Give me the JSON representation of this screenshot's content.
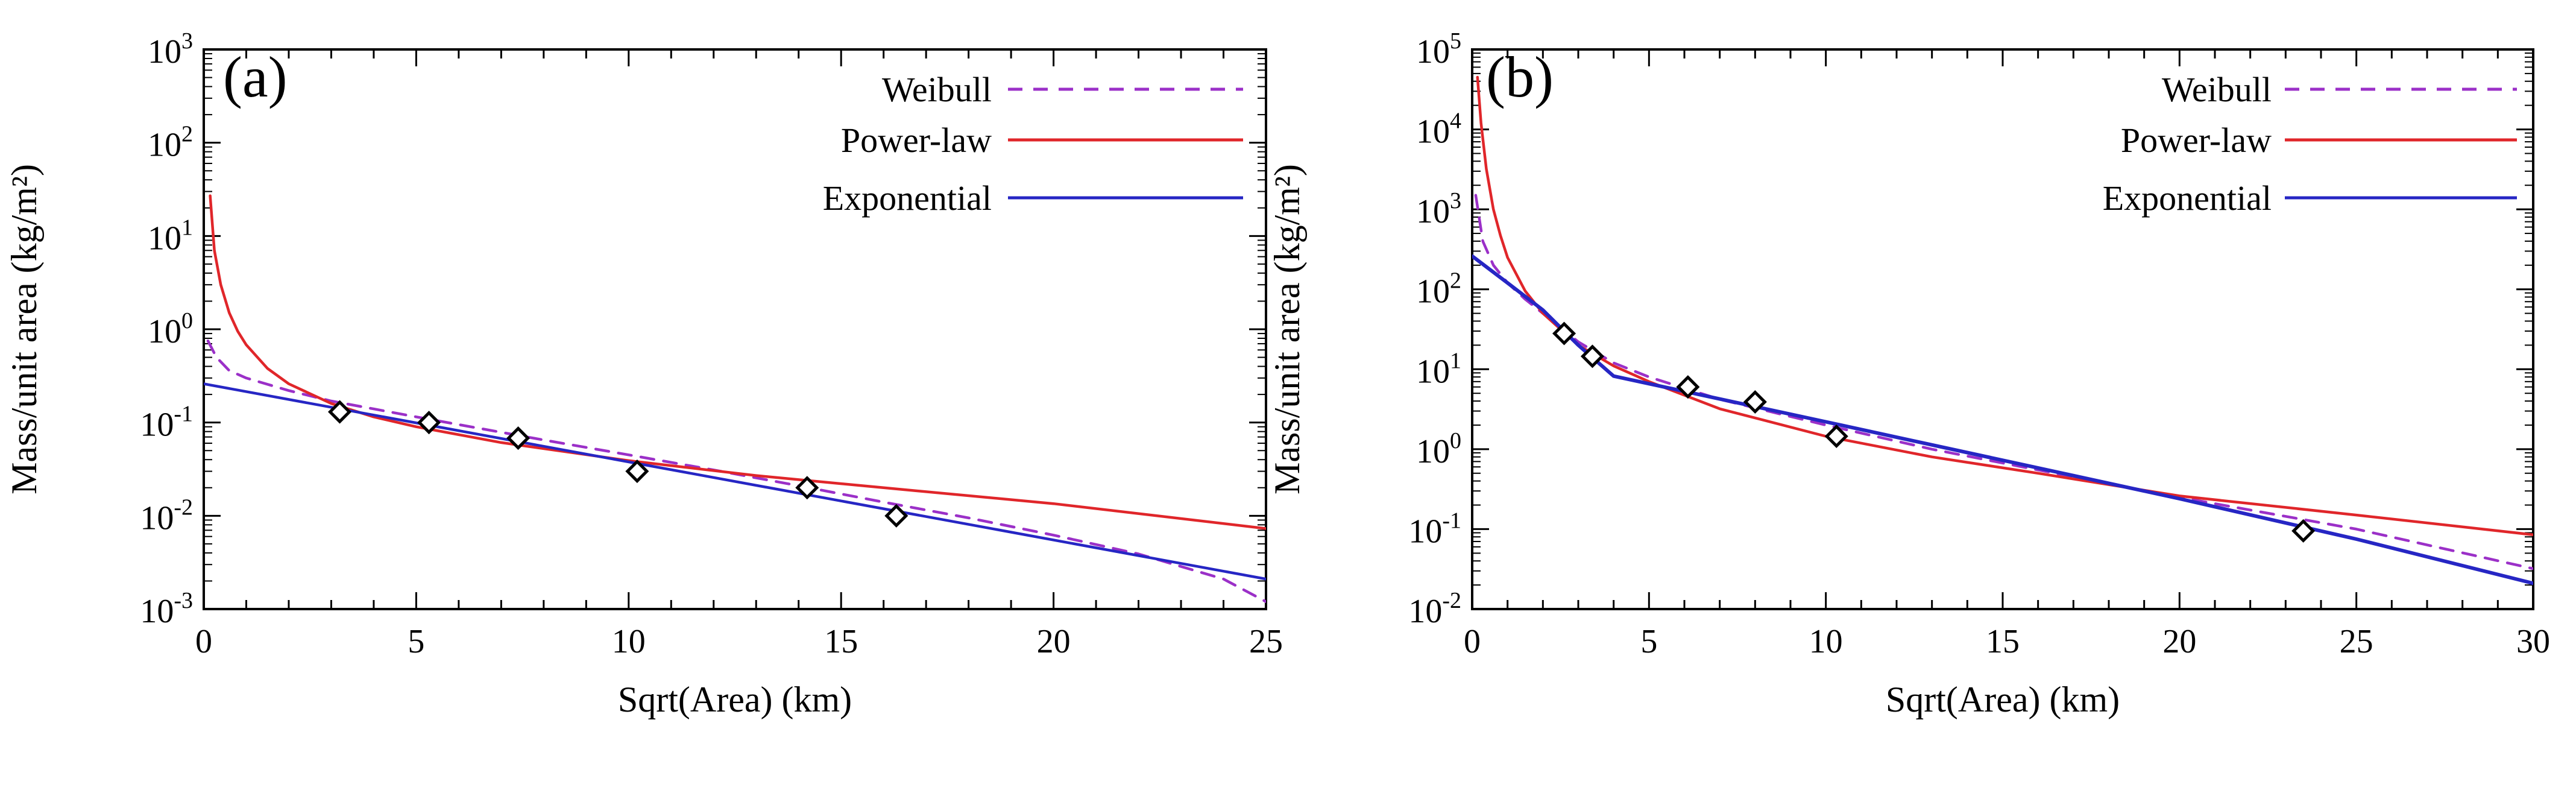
{
  "figure": {
    "colors": {
      "weibull": "#9b30c8",
      "powerlaw": "#e0262a",
      "exponential": "#2626c4",
      "data": "#000000"
    }
  },
  "chart_data": [
    {
      "type": "line",
      "panel_label": "(a)",
      "xlabel": "Sqrt(Area) (km)",
      "ylabel": "Mass/unit area (kg/m²)",
      "xlim": [
        0,
        25
      ],
      "ylim": [
        0.001,
        1000
      ],
      "yscale": "log",
      "x_ticks": [
        0,
        5,
        10,
        15,
        20,
        25
      ],
      "x_tick_labels": [
        "0",
        "5",
        "10",
        "15",
        "20",
        "25"
      ],
      "y_tick_exponents": [
        -3,
        -2,
        -1,
        0,
        1,
        2,
        3
      ],
      "y_tick_base": "10",
      "y_tick_exp_labels": [
        "-3",
        "-2",
        "-1",
        "0",
        "1",
        "2",
        "3"
      ],
      "legend_position": "top-right",
      "legend": [
        {
          "label": "Weibull",
          "style": "dashed",
          "color_key": "weibull"
        },
        {
          "label": "Power-law",
          "style": "solid",
          "color_key": "powerlaw"
        },
        {
          "label": "Exponential",
          "style": "solid",
          "color_key": "exponential"
        }
      ],
      "observations": {
        "x": [
          3.2,
          5.3,
          7.4,
          10.2,
          14.2,
          16.3
        ],
        "y": [
          0.13,
          0.1,
          0.068,
          0.03,
          0.02,
          0.01
        ]
      },
      "series": [
        {
          "name": "Weibull",
          "color_key": "weibull",
          "dashed": true,
          "x": [
            0.1,
            0.3,
            0.6,
            1,
            2,
            3,
            4,
            5,
            6,
            8,
            10,
            12,
            14,
            16,
            18,
            20,
            22,
            24,
            25
          ],
          "y": [
            0.75,
            0.5,
            0.36,
            0.3,
            0.22,
            0.17,
            0.14,
            0.115,
            0.095,
            0.065,
            0.045,
            0.031,
            0.021,
            0.014,
            0.0095,
            0.0062,
            0.0039,
            0.0021,
            0.0012
          ]
        },
        {
          "name": "Power-law",
          "color_key": "powerlaw",
          "dashed": false,
          "x": [
            0.15,
            0.25,
            0.4,
            0.6,
            0.8,
            1,
            1.5,
            2,
            3,
            4,
            5,
            7,
            10,
            13,
            16,
            20,
            25
          ],
          "y": [
            27,
            7,
            3.0,
            1.5,
            0.95,
            0.68,
            0.38,
            0.26,
            0.16,
            0.115,
            0.09,
            0.061,
            0.039,
            0.027,
            0.02,
            0.0135,
            0.0073
          ]
        },
        {
          "name": "Exponential",
          "color_key": "exponential",
          "dashed": false,
          "x": [
            0,
            25
          ],
          "y": [
            0.26,
            0.0021
          ]
        }
      ]
    },
    {
      "type": "line",
      "panel_label": "(b)",
      "xlabel": "Sqrt(Area) (km)",
      "ylabel": "Mass/unit area (kg/m²)",
      "xlim": [
        0,
        30
      ],
      "ylim": [
        0.01,
        100000
      ],
      "yscale": "log",
      "x_ticks": [
        0,
        5,
        10,
        15,
        20,
        25,
        30
      ],
      "x_tick_labels": [
        "0",
        "5",
        "10",
        "15",
        "20",
        "25",
        "30"
      ],
      "y_tick_exponents": [
        -2,
        -1,
        0,
        1,
        2,
        3,
        4,
        5
      ],
      "y_tick_base": "10",
      "y_tick_exp_labels": [
        "-2",
        "-1",
        "0",
        "1",
        "2",
        "3",
        "4",
        "5"
      ],
      "legend_position": "top-right",
      "legend": [
        {
          "label": "Weibull",
          "style": "dashed",
          "color_key": "weibull"
        },
        {
          "label": "Power-law",
          "style": "solid",
          "color_key": "powerlaw"
        },
        {
          "label": "Exponential",
          "style": "solid",
          "color_key": "exponential"
        }
      ],
      "observations": {
        "x": [
          2.6,
          3.4,
          6.1,
          8.0,
          10.3,
          23.5
        ],
        "y": [
          28,
          14.5,
          6.0,
          3.9,
          1.45,
          0.095
        ]
      },
      "series": [
        {
          "name": "Weibull",
          "color_key": "weibull",
          "dashed": true,
          "x": [
            0.1,
            0.3,
            0.6,
            1,
            1.5,
            2,
            3,
            4,
            5,
            7,
            10,
            13,
            16,
            20,
            25,
            30
          ],
          "y": [
            1500,
            400,
            200,
            120,
            75,
            50,
            22,
            12,
            8,
            4.2,
            2.0,
            1.0,
            0.55,
            0.25,
            0.1,
            0.032
          ]
        },
        {
          "name": "Power-law",
          "color_key": "powerlaw",
          "dashed": false,
          "x": [
            0.15,
            0.25,
            0.4,
            0.6,
            0.8,
            1,
            1.5,
            2,
            3,
            4,
            5,
            7,
            10,
            13,
            16,
            20,
            25,
            30
          ],
          "y": [
            45000,
            12000,
            3200,
            1000,
            470,
            250,
            95,
            50,
            20,
            11,
            7,
            3.2,
            1.45,
            0.8,
            0.5,
            0.26,
            0.15,
            0.085
          ]
        },
        {
          "name": "Exponential",
          "color_key": "exponential",
          "dashed": false,
          "x": [
            0,
            1,
            2,
            3,
            4,
            10,
            20,
            25,
            30
          ],
          "y": [
            260,
            120,
            55,
            20,
            8.2,
            2.2,
            0.24,
            0.075,
            0.021
          ]
        }
      ]
    }
  ]
}
